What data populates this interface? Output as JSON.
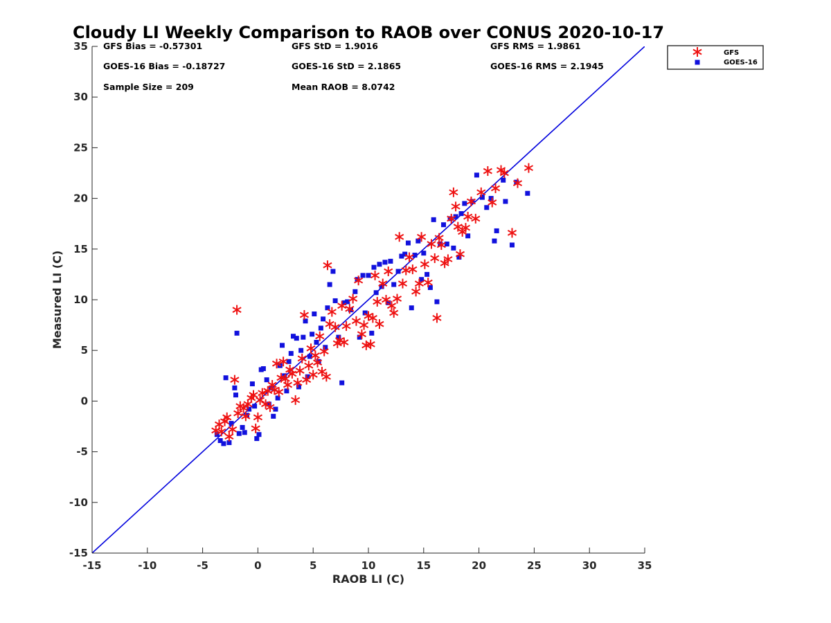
{
  "chart_data": {
    "type": "scatter",
    "title": "Cloudy LI Weekly Comparison to RAOB over CONUS 2020-10-17",
    "xlabel": "RAOB LI (C)",
    "ylabel": "Measured LI (C)",
    "xlim": [
      -15,
      35
    ],
    "ylim": [
      -15,
      35
    ],
    "xticks": [
      -15,
      -10,
      -5,
      0,
      5,
      10,
      15,
      20,
      25,
      30,
      35
    ],
    "yticks": [
      -15,
      -10,
      -5,
      0,
      5,
      10,
      15,
      20,
      25,
      30,
      35
    ],
    "grid": false,
    "legend_position": "outside-top-right",
    "stats": [
      [
        "GFS Bias = -0.57301",
        "GFS StD = 1.9016",
        "GFS RMS = 1.9861"
      ],
      [
        "GOES-16 Bias = -0.18727",
        "GOES-16 StD = 2.1865",
        "GOES-16 RMS = 2.1945"
      ],
      [
        "Sample Size = 209",
        "Mean RAOB = 8.0742"
      ]
    ],
    "reference_line": {
      "x": [
        -15,
        35
      ],
      "y": [
        -15,
        35
      ],
      "color": "#0000dd"
    },
    "series": [
      {
        "name": "GFS",
        "marker": "asterisk",
        "color": "#ee1111",
        "points": [
          [
            -3.8,
            -2.9
          ],
          [
            -3.5,
            -2.3
          ],
          [
            -3.3,
            -3.0
          ],
          [
            -3.0,
            -2.0
          ],
          [
            -2.8,
            -1.6
          ],
          [
            -2.6,
            -3.5
          ],
          [
            -2.3,
            -2.8
          ],
          [
            -2.1,
            2.1
          ],
          [
            -1.9,
            9.0
          ],
          [
            -1.8,
            -1.2
          ],
          [
            -1.6,
            -0.5
          ],
          [
            -1.3,
            -0.7
          ],
          [
            -1.1,
            -1.5
          ],
          [
            -0.9,
            -0.3
          ],
          [
            -0.6,
            0.3
          ],
          [
            -0.4,
            0.6
          ],
          [
            -0.2,
            -2.7
          ],
          [
            0.0,
            -1.6
          ],
          [
            0.2,
            0.1
          ],
          [
            0.4,
            0.8
          ],
          [
            0.7,
            -0.3
          ],
          [
            0.9,
            1.0
          ],
          [
            1.1,
            -0.6
          ],
          [
            1.3,
            1.6
          ],
          [
            1.5,
            1.1
          ],
          [
            1.7,
            3.7
          ],
          [
            1.9,
            0.9
          ],
          [
            2.1,
            2.3
          ],
          [
            2.3,
            3.9
          ],
          [
            2.5,
            2.2
          ],
          [
            2.7,
            1.6
          ],
          [
            2.9,
            3.1
          ],
          [
            3.1,
            2.7
          ],
          [
            3.4,
            0.1
          ],
          [
            3.6,
            1.8
          ],
          [
            3.8,
            3.0
          ],
          [
            4.0,
            4.2
          ],
          [
            4.2,
            8.5
          ],
          [
            4.4,
            2.1
          ],
          [
            4.6,
            3.5
          ],
          [
            4.8,
            5.2
          ],
          [
            5.0,
            2.6
          ],
          [
            5.2,
            4.5
          ],
          [
            5.4,
            3.8
          ],
          [
            5.6,
            6.4
          ],
          [
            5.8,
            2.9
          ],
          [
            6.0,
            4.9
          ],
          [
            6.2,
            2.4
          ],
          [
            6.3,
            13.4
          ],
          [
            6.5,
            7.6
          ],
          [
            6.7,
            8.8
          ],
          [
            7.0,
            7.3
          ],
          [
            7.2,
            5.7
          ],
          [
            7.4,
            6.0
          ],
          [
            7.6,
            9.4
          ],
          [
            7.8,
            5.8
          ],
          [
            8.0,
            7.4
          ],
          [
            8.3,
            9.1
          ],
          [
            8.6,
            10.1
          ],
          [
            8.9,
            7.9
          ],
          [
            9.1,
            11.9
          ],
          [
            9.4,
            6.6
          ],
          [
            9.6,
            7.5
          ],
          [
            9.8,
            5.5
          ],
          [
            10.0,
            8.4
          ],
          [
            10.2,
            5.6
          ],
          [
            10.4,
            8.2
          ],
          [
            10.6,
            12.4
          ],
          [
            10.8,
            9.8
          ],
          [
            11.0,
            7.6
          ],
          [
            11.3,
            11.6
          ],
          [
            11.6,
            10.0
          ],
          [
            11.8,
            12.8
          ],
          [
            12.1,
            9.4
          ],
          [
            12.3,
            8.7
          ],
          [
            12.6,
            10.1
          ],
          [
            12.8,
            16.2
          ],
          [
            13.1,
            11.6
          ],
          [
            13.4,
            12.9
          ],
          [
            13.7,
            14.2
          ],
          [
            14.0,
            13.0
          ],
          [
            14.3,
            10.8
          ],
          [
            14.6,
            11.6
          ],
          [
            14.8,
            16.2
          ],
          [
            15.1,
            13.5
          ],
          [
            15.4,
            11.7
          ],
          [
            15.7,
            15.5
          ],
          [
            16.0,
            14.1
          ],
          [
            16.2,
            8.2
          ],
          [
            16.4,
            16.1
          ],
          [
            16.6,
            15.4
          ],
          [
            16.9,
            13.6
          ],
          [
            17.2,
            14.0
          ],
          [
            17.5,
            18.0
          ],
          [
            17.7,
            20.6
          ],
          [
            17.9,
            19.2
          ],
          [
            18.1,
            17.2
          ],
          [
            18.3,
            14.5
          ],
          [
            18.5,
            16.7
          ],
          [
            18.8,
            17.1
          ],
          [
            19.0,
            18.2
          ],
          [
            19.3,
            19.7
          ],
          [
            19.7,
            18.0
          ],
          [
            20.2,
            20.6
          ],
          [
            20.8,
            22.7
          ],
          [
            21.2,
            19.6
          ],
          [
            21.5,
            21.0
          ],
          [
            22.0,
            22.8
          ],
          [
            22.3,
            22.5
          ],
          [
            23.0,
            16.6
          ],
          [
            23.5,
            21.5
          ],
          [
            24.5,
            23.0
          ]
        ]
      },
      {
        "name": "GOES-16",
        "marker": "square",
        "color": "#1111dd",
        "points": [
          [
            -3.7,
            -3.3
          ],
          [
            -3.4,
            -3.9
          ],
          [
            -3.1,
            -4.2
          ],
          [
            -2.9,
            2.3
          ],
          [
            -2.6,
            -4.1
          ],
          [
            -2.4,
            -2.2
          ],
          [
            -2.1,
            1.3
          ],
          [
            -2.0,
            0.6
          ],
          [
            -1.9,
            6.7
          ],
          [
            -1.7,
            -3.2
          ],
          [
            -1.4,
            -2.6
          ],
          [
            -1.2,
            -3.1
          ],
          [
            -1.0,
            -1.4
          ],
          [
            -0.8,
            -0.8
          ],
          [
            -0.5,
            1.7
          ],
          [
            -0.3,
            -0.5
          ],
          [
            -0.1,
            -3.7
          ],
          [
            0.1,
            -3.3
          ],
          [
            0.3,
            3.1
          ],
          [
            0.5,
            3.2
          ],
          [
            0.8,
            2.1
          ],
          [
            1.0,
            -0.3
          ],
          [
            1.2,
            1.3
          ],
          [
            1.4,
            -1.5
          ],
          [
            1.6,
            -0.8
          ],
          [
            1.8,
            0.3
          ],
          [
            2.0,
            3.5
          ],
          [
            2.2,
            5.5
          ],
          [
            2.4,
            2.5
          ],
          [
            2.6,
            1.0
          ],
          [
            2.8,
            3.9
          ],
          [
            3.0,
            4.7
          ],
          [
            3.2,
            6.4
          ],
          [
            3.5,
            6.2
          ],
          [
            3.7,
            1.4
          ],
          [
            3.9,
            5.0
          ],
          [
            4.1,
            6.3
          ],
          [
            4.3,
            7.9
          ],
          [
            4.5,
            2.4
          ],
          [
            4.7,
            4.4
          ],
          [
            4.9,
            6.6
          ],
          [
            5.1,
            8.6
          ],
          [
            5.3,
            5.8
          ],
          [
            5.5,
            3.9
          ],
          [
            5.7,
            7.2
          ],
          [
            5.9,
            8.1
          ],
          [
            6.1,
            5.3
          ],
          [
            6.3,
            9.2
          ],
          [
            6.5,
            11.5
          ],
          [
            6.8,
            12.8
          ],
          [
            7.0,
            9.9
          ],
          [
            7.3,
            6.3
          ],
          [
            7.6,
            1.8
          ],
          [
            7.8,
            9.7
          ],
          [
            8.1,
            9.8
          ],
          [
            8.4,
            9.0
          ],
          [
            8.8,
            10.8
          ],
          [
            9.0,
            12.0
          ],
          [
            9.2,
            6.3
          ],
          [
            9.5,
            12.4
          ],
          [
            9.7,
            8.7
          ],
          [
            10.0,
            12.4
          ],
          [
            10.3,
            6.7
          ],
          [
            10.5,
            13.2
          ],
          [
            10.7,
            10.7
          ],
          [
            11.0,
            13.5
          ],
          [
            11.2,
            11.3
          ],
          [
            11.5,
            13.7
          ],
          [
            11.8,
            9.7
          ],
          [
            12.0,
            13.8
          ],
          [
            12.3,
            11.5
          ],
          [
            12.7,
            12.8
          ],
          [
            13.0,
            14.3
          ],
          [
            13.3,
            14.5
          ],
          [
            13.6,
            15.6
          ],
          [
            13.9,
            9.2
          ],
          [
            14.2,
            14.4
          ],
          [
            14.5,
            15.8
          ],
          [
            14.8,
            12.0
          ],
          [
            15.0,
            14.6
          ],
          [
            15.3,
            12.5
          ],
          [
            15.6,
            11.2
          ],
          [
            15.9,
            17.9
          ],
          [
            16.2,
            9.8
          ],
          [
            16.5,
            15.5
          ],
          [
            16.8,
            17.4
          ],
          [
            17.1,
            15.5
          ],
          [
            17.4,
            18.0
          ],
          [
            17.7,
            15.1
          ],
          [
            17.9,
            18.2
          ],
          [
            18.2,
            14.2
          ],
          [
            18.4,
            18.5
          ],
          [
            18.7,
            19.5
          ],
          [
            19.0,
            16.3
          ],
          [
            19.4,
            19.7
          ],
          [
            19.8,
            22.3
          ],
          [
            20.3,
            20.1
          ],
          [
            20.7,
            19.1
          ],
          [
            21.1,
            20.0
          ],
          [
            21.4,
            15.8
          ],
          [
            21.6,
            16.8
          ],
          [
            22.2,
            21.8
          ],
          [
            22.4,
            19.7
          ],
          [
            23.0,
            15.4
          ],
          [
            23.4,
            21.6
          ],
          [
            24.4,
            20.5
          ]
        ]
      }
    ]
  }
}
